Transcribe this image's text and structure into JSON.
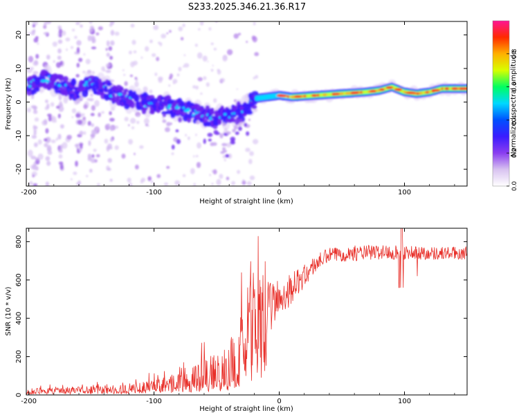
{
  "chart_data": [
    {
      "type": "heatmap",
      "title": "S233.2025.346.21.36.R17",
      "xlabel": "Height of straight line (km)",
      "ylabel": "Frequency (Hz)",
      "xlim": [
        -202,
        150
      ],
      "ylim": [
        -25,
        24
      ],
      "xticks": [
        -200,
        -100,
        0,
        100
      ],
      "xtick_labels": [
        "-200",
        "-100",
        "0",
        "100"
      ],
      "yticks": [
        -20,
        -10,
        0,
        10,
        20
      ],
      "ytick_labels": [
        "-20",
        "-10",
        "0",
        "10",
        "20"
      ],
      "colorbar": {
        "label": "Normalized spectral amplitude",
        "range": [
          0,
          1
        ],
        "ticks": [
          0.0,
          0.2,
          0.4,
          0.6,
          0.8
        ],
        "tick_labels": [
          "0.0",
          "0.2",
          "0.4",
          "0.6",
          "0.8"
        ],
        "colors": [
          "#ffffff",
          "#d8c2f0",
          "#8a3df0",
          "#3a1cff",
          "#0050ff",
          "#00d8ff",
          "#00ff60",
          "#d8ff00",
          "#ffb000",
          "#ff2a00",
          "#ff1493"
        ]
      },
      "ridge": {
        "x": [
          -200,
          -185,
          -175,
          -160,
          -150,
          -140,
          -130,
          -120,
          -100,
          -90,
          -80,
          -70,
          -60,
          -50,
          -40,
          -30,
          -25,
          -20,
          -10,
          0,
          10,
          30,
          50,
          70,
          80,
          90,
          100,
          110,
          120,
          130,
          140,
          150
        ],
        "y": [
          5,
          7,
          5,
          3,
          6,
          4,
          2,
          1,
          -1,
          -1,
          -2,
          -3,
          -4,
          -5,
          -4,
          -3,
          -1,
          1,
          1.5,
          2,
          1.5,
          2,
          2.5,
          3,
          3.5,
          4.5,
          3,
          2.5,
          3,
          4,
          4,
          4
        ]
      }
    },
    {
      "type": "line",
      "xlabel": "Height of straight line (km)",
      "ylabel": "SNR (10 * v/v)",
      "xlim": [
        -202,
        150
      ],
      "ylim": [
        0,
        870
      ],
      "xticks": [
        -200,
        -100,
        0,
        100
      ],
      "xtick_labels": [
        "-200",
        "-100",
        "0",
        "100"
      ],
      "yticks": [
        0,
        200,
        400,
        600,
        800
      ],
      "ytick_labels": [
        "0",
        "200",
        "400",
        "600",
        "800"
      ],
      "color": "#e8302a",
      "envelope": {
        "x": [
          -202,
          -150,
          -120,
          -100,
          -80,
          -60,
          -50,
          -40,
          -30,
          -25,
          -20,
          -15,
          -10,
          0,
          10,
          20,
          30,
          40,
          60,
          80,
          100,
          120,
          150
        ],
        "base": [
          20,
          25,
          30,
          40,
          60,
          80,
          100,
          120,
          180,
          250,
          350,
          400,
          450,
          500,
          560,
          620,
          690,
          730,
          740,
          745,
          745,
          740,
          740
        ],
        "amp": [
          15,
          20,
          25,
          40,
          60,
          110,
          120,
          150,
          250,
          320,
          300,
          200,
          140,
          110,
          80,
          60,
          45,
          40,
          40,
          40,
          40,
          35,
          35
        ]
      }
    }
  ]
}
